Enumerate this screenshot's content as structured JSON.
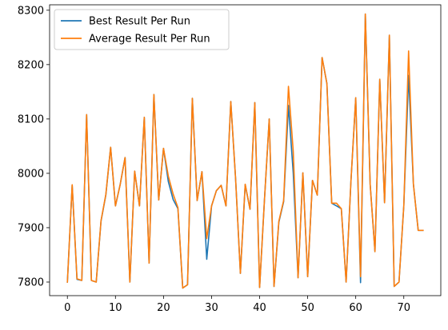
{
  "chart_data": {
    "type": "line",
    "title": "",
    "xlabel": "",
    "ylabel": "",
    "xlim": [
      -3.7,
      77.7
    ],
    "ylim": [
      7775,
      8310
    ],
    "xticks": [
      0,
      10,
      20,
      30,
      40,
      50,
      60,
      70
    ],
    "yticks": [
      7800,
      7900,
      8000,
      8100,
      8200,
      8300
    ],
    "grid": false,
    "legend_position": "upper-left",
    "x": [
      0,
      1,
      2,
      3,
      4,
      5,
      6,
      7,
      8,
      9,
      10,
      11,
      12,
      13,
      14,
      15,
      16,
      17,
      18,
      19,
      20,
      21,
      22,
      23,
      24,
      25,
      26,
      27,
      28,
      29,
      30,
      31,
      32,
      33,
      34,
      35,
      36,
      37,
      38,
      39,
      40,
      41,
      42,
      43,
      44,
      45,
      46,
      47,
      48,
      49,
      50,
      51,
      52,
      53,
      54,
      55,
      56,
      57,
      58,
      59,
      60,
      61,
      62,
      63,
      64,
      65,
      66,
      67,
      68,
      69,
      70,
      71,
      72,
      73,
      74
    ],
    "series": [
      {
        "name": "Best Result Per Run",
        "color": "#1f77b4",
        "values": [
          7800,
          7978,
          7805,
          7803,
          8108,
          7803,
          7800,
          7912,
          7960,
          8048,
          7940,
          7980,
          8029,
          7800,
          8004,
          7940,
          8103,
          7835,
          8145,
          7951,
          8046,
          7985,
          7952,
          7935,
          7789,
          7795,
          8138,
          7950,
          8003,
          7842,
          7940,
          7968,
          7978,
          7940,
          8132,
          7990,
          7816,
          7979,
          7934,
          8130,
          7790,
          7950,
          8100,
          7792,
          7910,
          7948,
          8125,
          8000,
          7808,
          8001,
          7810,
          7987,
          7960,
          8213,
          8165,
          7945,
          7940,
          7935,
          7800,
          7985,
          8139,
          7799,
          8293,
          7980,
          7856,
          8173,
          7946,
          8254,
          7792,
          7800,
          7940,
          8180,
          7980,
          7895,
          7895
        ]
      },
      {
        "name": "Average Result Per Run",
        "color": "#ff7f0e",
        "values": [
          7800,
          7979,
          7806,
          7803,
          8108,
          7803,
          7800,
          7913,
          7961,
          8048,
          7940,
          7980,
          8029,
          7800,
          8004,
          7940,
          8103,
          7835,
          8145,
          7951,
          8046,
          7995,
          7962,
          7937,
          7789,
          7795,
          8138,
          7950,
          8003,
          7880,
          7940,
          7968,
          7978,
          7940,
          8132,
          7990,
          7816,
          7980,
          7934,
          8130,
          7790,
          7950,
          8100,
          7792,
          7912,
          7950,
          8160,
          8040,
          7808,
          8001,
          7810,
          7987,
          7960,
          8213,
          8165,
          7945,
          7945,
          7935,
          7800,
          7985,
          8139,
          7810,
          8293,
          7980,
          7856,
          8173,
          7946,
          8254,
          7792,
          7800,
          7940,
          8225,
          7980,
          7895,
          7895
        ]
      }
    ]
  }
}
